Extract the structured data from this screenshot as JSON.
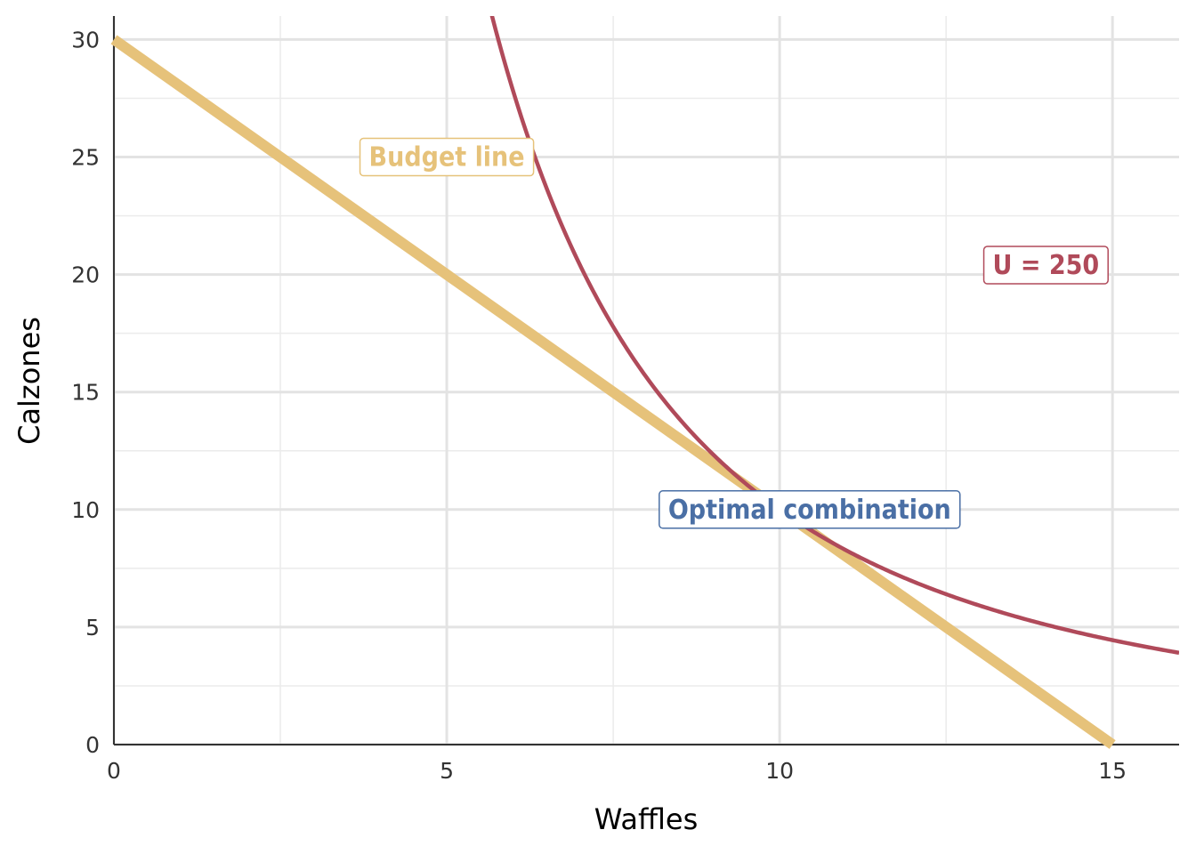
{
  "chart_data": {
    "type": "line",
    "title": "",
    "xlabel": "Waffles",
    "ylabel": "Calzones",
    "xlim": [
      0,
      16
    ],
    "ylim": [
      0,
      31
    ],
    "x_ticks": [
      0,
      5,
      10,
      15
    ],
    "x_tick_labels": [
      "0",
      "5",
      "10",
      "15"
    ],
    "y_ticks": [
      0,
      5,
      10,
      15,
      20,
      25,
      30
    ],
    "y_tick_labels": [
      "0",
      "5",
      "10",
      "15",
      "20",
      "25",
      "30"
    ],
    "x_minor_grid": [
      2.5,
      7.5,
      12.5
    ],
    "y_minor_grid": [
      2.5,
      7.5,
      12.5,
      17.5,
      22.5,
      27.5
    ],
    "grid": true,
    "series": [
      {
        "name": "Budget line",
        "kind": "budget",
        "color": "#E6C27A",
        "points": [
          [
            0,
            30
          ],
          [
            15,
            0
          ]
        ]
      },
      {
        "name": "U = 250",
        "kind": "indifference",
        "color": "#B04A5A",
        "equation": "x^2 * y = 1000",
        "x_range": [
          5.6,
          16
        ]
      }
    ],
    "points": [
      {
        "x": 10,
        "y": 10,
        "color": "#4A6FA5"
      }
    ],
    "annotations": [
      {
        "text": "Budget line",
        "x": 5.0,
        "y": 25,
        "color": "#E6C27A"
      },
      {
        "text": "U = 250",
        "x": 14.0,
        "y": 20.4,
        "color": "#B04A5A"
      },
      {
        "text": "Optimal combination",
        "x": 10.45,
        "y": 10,
        "color": "#4A6FA5"
      }
    ]
  }
}
